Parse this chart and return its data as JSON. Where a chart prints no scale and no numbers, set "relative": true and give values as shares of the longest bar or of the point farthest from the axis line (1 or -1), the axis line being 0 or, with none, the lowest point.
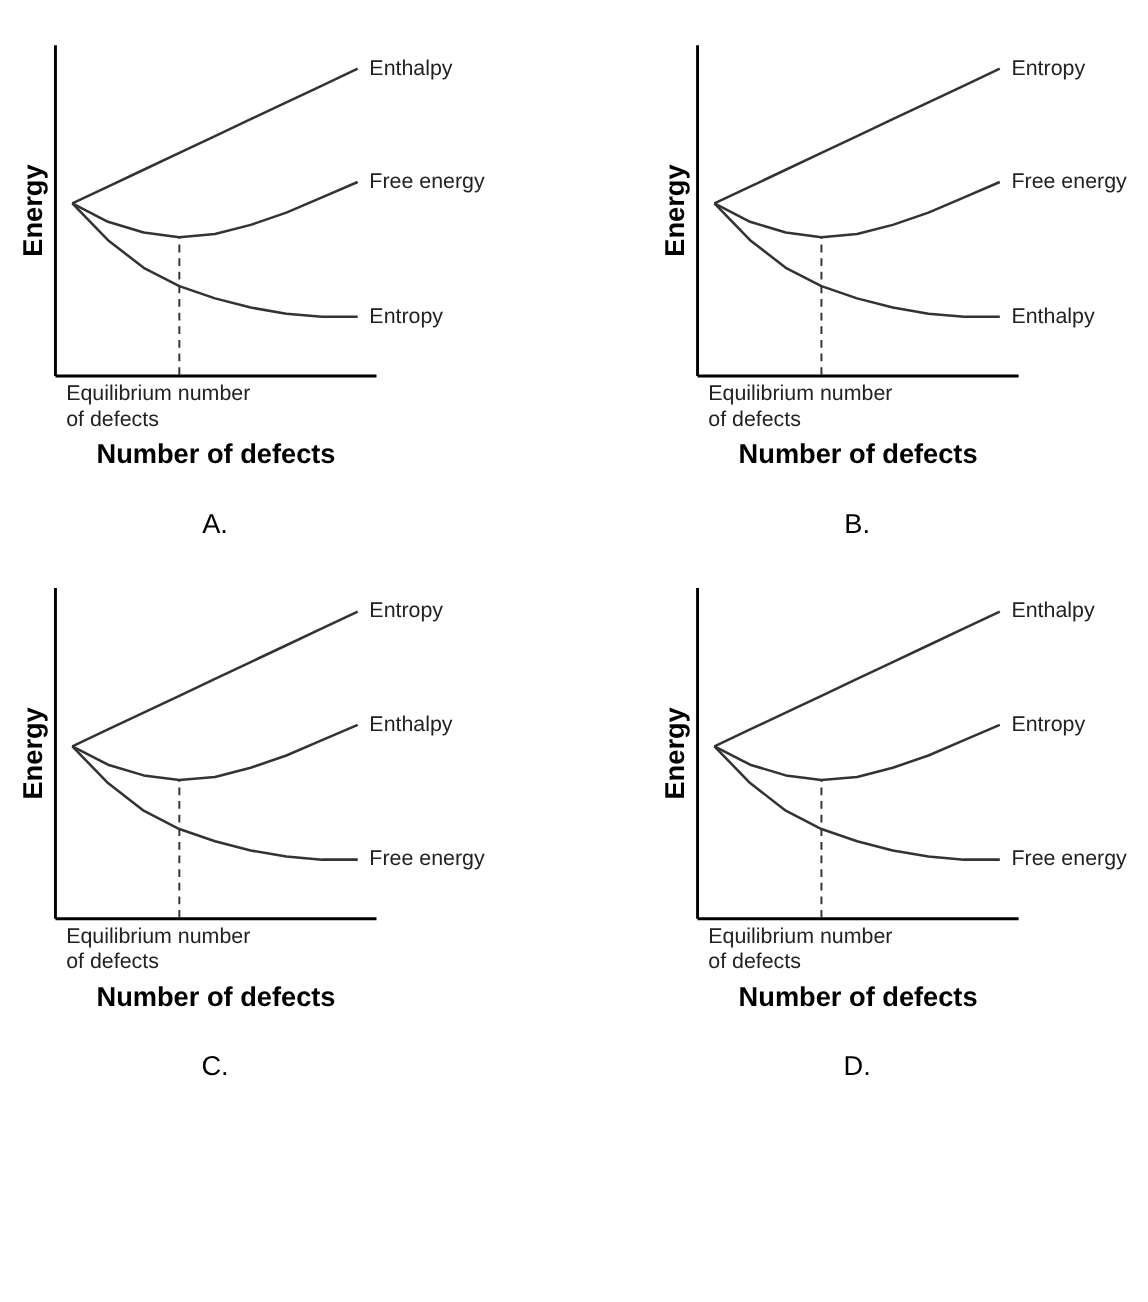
{
  "chart_data": [
    {
      "type": "line",
      "title": "A.",
      "xlabel": "Number of defects",
      "ylabel": "Energy",
      "relative": true,
      "tick_labels": false,
      "line_style": "solid",
      "categories": [
        null,
        null,
        null,
        null,
        null,
        null,
        null,
        null,
        null
      ],
      "series": [
        {
          "name": "Enthalpy",
          "color": "#333333",
          "values": [
            0.56,
            0.615,
            0.67,
            0.725,
            0.78,
            0.835,
            0.89,
            0.945,
            1.0
          ]
        },
        {
          "name": "Free energy",
          "color": "#333333",
          "values": [
            0.56,
            0.5,
            0.465,
            0.45,
            0.46,
            0.49,
            0.53,
            0.58,
            0.63
          ]
        },
        {
          "name": "Entropy",
          "color": "#333333",
          "values": [
            0.56,
            0.44,
            0.35,
            0.29,
            0.25,
            0.22,
            0.2,
            0.19,
            0.19
          ]
        }
      ],
      "annotations": [
        "Equilibrium number\nof defects"
      ]
    },
    {
      "type": "line",
      "title": "B.",
      "xlabel": "Number of defects",
      "ylabel": "Energy",
      "relative": true,
      "tick_labels": false,
      "line_style": "solid",
      "categories": [
        null,
        null,
        null,
        null,
        null,
        null,
        null,
        null,
        null
      ],
      "series": [
        {
          "name": "Entropy",
          "color": "#333333",
          "values": [
            0.56,
            0.615,
            0.67,
            0.725,
            0.78,
            0.835,
            0.89,
            0.945,
            1.0
          ]
        },
        {
          "name": "Free energy",
          "color": "#333333",
          "values": [
            0.56,
            0.5,
            0.465,
            0.45,
            0.46,
            0.49,
            0.53,
            0.58,
            0.63
          ]
        },
        {
          "name": "Enthalpy",
          "color": "#333333",
          "values": [
            0.56,
            0.44,
            0.35,
            0.29,
            0.25,
            0.22,
            0.2,
            0.19,
            0.19
          ]
        }
      ],
      "annotations": [
        "Equilibrium number\nof defects"
      ]
    },
    {
      "type": "line",
      "title": "C.",
      "xlabel": "Number of defects",
      "ylabel": "Energy",
      "relative": true,
      "tick_labels": false,
      "line_style": "solid",
      "categories": [
        null,
        null,
        null,
        null,
        null,
        null,
        null,
        null,
        null
      ],
      "series": [
        {
          "name": "Entropy",
          "color": "#333333",
          "values": [
            0.56,
            0.615,
            0.67,
            0.725,
            0.78,
            0.835,
            0.89,
            0.945,
            1.0
          ]
        },
        {
          "name": "Enthalpy",
          "color": "#333333",
          "values": [
            0.56,
            0.5,
            0.465,
            0.45,
            0.46,
            0.49,
            0.53,
            0.58,
            0.63
          ]
        },
        {
          "name": "Free energy",
          "color": "#333333",
          "values": [
            0.56,
            0.44,
            0.35,
            0.29,
            0.25,
            0.22,
            0.2,
            0.19,
            0.19
          ]
        }
      ],
      "annotations": [
        "Equilibrium number\nof defects"
      ]
    },
    {
      "type": "line",
      "title": "D.",
      "xlabel": "Number of defects",
      "ylabel": "Energy",
      "relative": true,
      "tick_labels": false,
      "line_style": "solid",
      "categories": [
        null,
        null,
        null,
        null,
        null,
        null,
        null,
        null,
        null
      ],
      "series": [
        {
          "name": "Enthalpy",
          "color": "#333333",
          "values": [
            0.56,
            0.615,
            0.67,
            0.725,
            0.78,
            0.835,
            0.89,
            0.945,
            1.0
          ]
        },
        {
          "name": "Entropy",
          "color": "#333333",
          "values": [
            0.56,
            0.5,
            0.465,
            0.45,
            0.46,
            0.49,
            0.53,
            0.58,
            0.63
          ]
        },
        {
          "name": "Free energy",
          "color": "#333333",
          "values": [
            0.56,
            0.44,
            0.35,
            0.29,
            0.25,
            0.22,
            0.2,
            0.19,
            0.19
          ]
        }
      ],
      "annotations": [
        "Equilibrium number\nof defects"
      ]
    }
  ]
}
